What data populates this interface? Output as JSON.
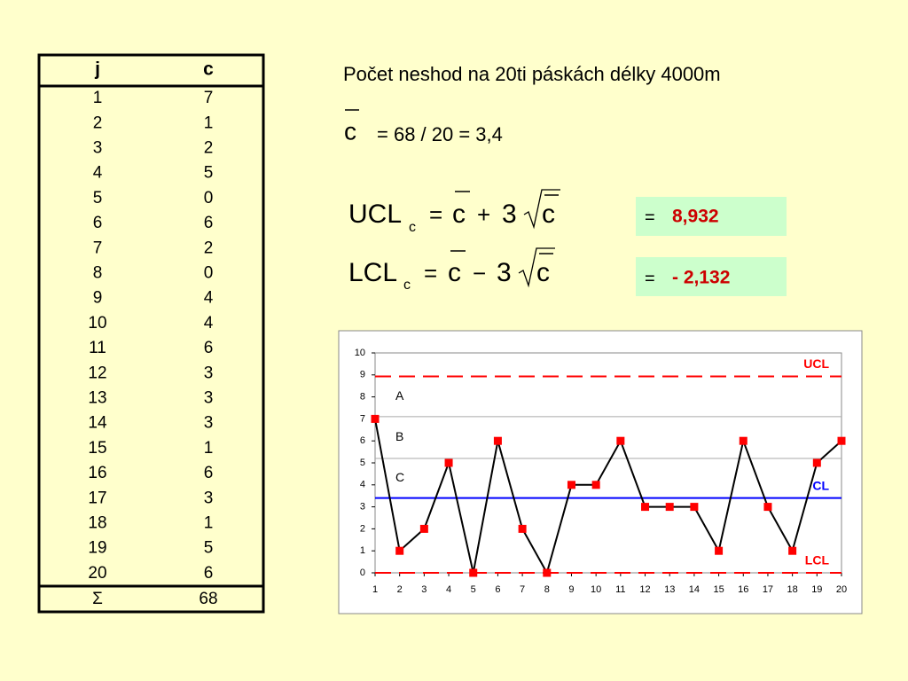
{
  "table": {
    "headers": [
      "j",
      "c"
    ],
    "rows": [
      [
        1,
        7
      ],
      [
        2,
        1
      ],
      [
        3,
        2
      ],
      [
        4,
        5
      ],
      [
        5,
        0
      ],
      [
        6,
        6
      ],
      [
        7,
        2
      ],
      [
        8,
        0
      ],
      [
        9,
        4
      ],
      [
        10,
        4
      ],
      [
        11,
        6
      ],
      [
        12,
        3
      ],
      [
        13,
        3
      ],
      [
        14,
        3
      ],
      [
        15,
        1
      ],
      [
        16,
        6
      ],
      [
        17,
        3
      ],
      [
        18,
        1
      ],
      [
        19,
        5
      ],
      [
        20,
        6
      ]
    ],
    "sum": [
      "Σ",
      68
    ]
  },
  "header": {
    "title": "Počet neshod na 20ti páskách délky 4000m"
  },
  "formulas": {
    "mean": {
      "symbol": "c",
      "expression": "=  68 / 20  =  3,4"
    },
    "ucl": {
      "lhs": "UCL",
      "sub": "c",
      "eq": "=",
      "c1": "c",
      "op": "+",
      "three": "3",
      "c2": "c"
    },
    "lcl": {
      "lhs": "LCL",
      "sub": "c",
      "eq": "=",
      "c1": "c",
      "op": "−",
      "three": "3",
      "c2": "c"
    }
  },
  "results": {
    "ucl": {
      "eq": "=",
      "value": "8,932"
    },
    "lcl": {
      "eq": "=",
      "value": "- 2,132"
    }
  },
  "chart_data": {
    "type": "line",
    "x": [
      1,
      2,
      3,
      4,
      5,
      6,
      7,
      8,
      9,
      10,
      11,
      12,
      13,
      14,
      15,
      16,
      17,
      18,
      19,
      20
    ],
    "values": [
      7,
      1,
      2,
      5,
      0,
      6,
      2,
      0,
      4,
      4,
      6,
      3,
      3,
      3,
      1,
      6,
      3,
      1,
      5,
      6
    ],
    "line_color": "#000000",
    "marker_color": "#ff0000",
    "xlim": [
      1,
      20
    ],
    "xticks": [
      1,
      2,
      3,
      4,
      5,
      6,
      7,
      8,
      9,
      10,
      11,
      12,
      13,
      14,
      15,
      16,
      17,
      18,
      19,
      20
    ],
    "ylim": [
      0,
      10
    ],
    "yticks": [
      0,
      1,
      2,
      3,
      4,
      5,
      6,
      7,
      8,
      9,
      10
    ],
    "reference_lines": [
      {
        "label": "UCL",
        "value": 8.932,
        "color": "#ff0000",
        "style": "dashed"
      },
      {
        "label": "CL",
        "value": 3.4,
        "color": "#0000ff",
        "style": "solid"
      },
      {
        "label": "LCL",
        "value": 0,
        "color": "#ff0000",
        "style": "dashed"
      }
    ],
    "zone_lines": [
      7.1,
      5.2
    ],
    "zone_labels": [
      "A",
      "B",
      "C"
    ]
  }
}
